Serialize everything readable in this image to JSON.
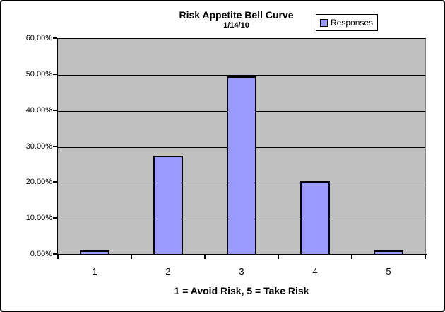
{
  "chart": {
    "title": "Risk Appetite Bell Curve",
    "subtitle": "1/14/10",
    "legend": {
      "label": "Responses",
      "marker_color": "#9999FF"
    }
  },
  "chart_data": {
    "type": "bar",
    "title": "Risk Appetite Bell Curve",
    "subtitle": "1/14/10",
    "categories": [
      "1",
      "2",
      "3",
      "4",
      "5"
    ],
    "series": [
      {
        "name": "Responses",
        "values": [
          1.2,
          27.5,
          49.5,
          20.5,
          1.2
        ]
      }
    ],
    "xlabel": "1 = Avoid Risk, 5 = Take Risk",
    "ylabel": "",
    "ylim": [
      0,
      60
    ],
    "ytick_step": 10,
    "yticks": [
      "0.00%",
      "10.00%",
      "20.00%",
      "30.00%",
      "40.00%",
      "50.00%",
      "60.00%"
    ],
    "grid": true,
    "legend_position": "top-right",
    "colors": {
      "bar_fill": "#9999FF",
      "bar_border": "#000000",
      "plot_background": "#C0C0C0",
      "gridline": "#000000",
      "chart_background": "#FFFFFF"
    }
  }
}
